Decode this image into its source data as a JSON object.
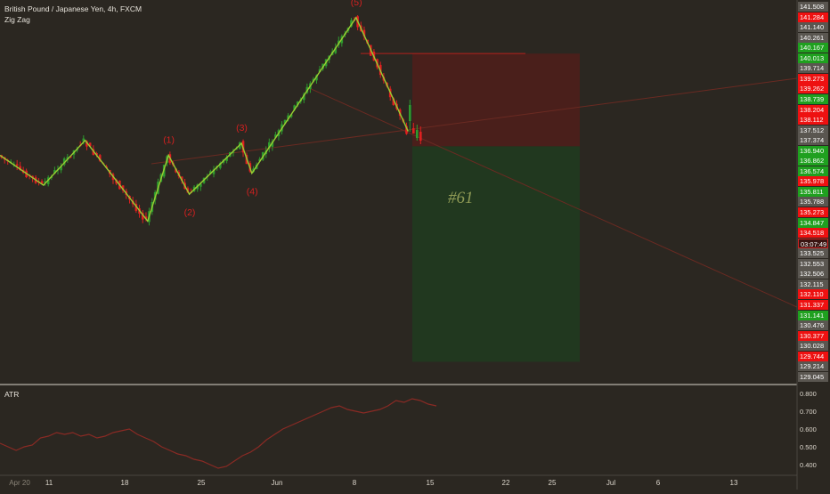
{
  "chart_title": "British Pound / Japanese Yen, 4h, FXCM",
  "indicator_label": "Zig Zag",
  "atr_label": "ATR",
  "position_label": "#61",
  "countdown": "03:07:49",
  "colors": {
    "background": "#2b2721",
    "zigzag": "#9acd32",
    "up_candle": "#2e9b2e",
    "down_candle": "#e02020",
    "stop_zone": "#4a1f1b",
    "target_zone": "#21381f",
    "wave_label": "#d42020",
    "atr_line": "#8a2a24",
    "tag_green": "#1fa01f",
    "tag_red": "#ee1111",
    "tag_gray": "#5a5650"
  },
  "wave_labels": [
    "(1)",
    "(2)",
    "(3)",
    "(4)",
    "(5)"
  ],
  "price_tags": [
    {
      "text": "141.508",
      "kind": "gray"
    },
    {
      "text": "141.284",
      "kind": "red"
    },
    {
      "text": "141.140",
      "kind": "gray"
    },
    {
      "text": "140.261",
      "kind": "gray"
    },
    {
      "text": "140.167",
      "kind": "green"
    },
    {
      "text": "140.013",
      "kind": "green"
    },
    {
      "text": "139.714",
      "kind": "gray"
    },
    {
      "text": "139.273",
      "kind": "red"
    },
    {
      "text": "139.262",
      "kind": "red"
    },
    {
      "text": "138.739",
      "kind": "green"
    },
    {
      "text": "138.204",
      "kind": "red"
    },
    {
      "text": "138.112",
      "kind": "red"
    },
    {
      "text": "137.512",
      "kind": "gray"
    },
    {
      "text": "137.374",
      "kind": "gray"
    },
    {
      "text": "136.940",
      "kind": "green"
    },
    {
      "text": "136.862",
      "kind": "green"
    },
    {
      "text": "136.574",
      "kind": "green"
    },
    {
      "text": "135.978",
      "kind": "red"
    },
    {
      "text": "135.811",
      "kind": "green"
    },
    {
      "text": "135.788",
      "kind": "gray"
    },
    {
      "text": "135.273",
      "kind": "red"
    },
    {
      "text": "134.847",
      "kind": "green"
    },
    {
      "text": "134.518",
      "kind": "red"
    },
    {
      "text": "03:07:49",
      "kind": "dark"
    },
    {
      "text": "133.525",
      "kind": "gray"
    },
    {
      "text": "132.553",
      "kind": "gray"
    },
    {
      "text": "132.506",
      "kind": "gray"
    },
    {
      "text": "132.115",
      "kind": "gray"
    },
    {
      "text": "132.110",
      "kind": "red"
    },
    {
      "text": "131.337",
      "kind": "red"
    },
    {
      "text": "131.141",
      "kind": "green"
    },
    {
      "text": "130.476",
      "kind": "gray"
    },
    {
      "text": "130.377",
      "kind": "red"
    },
    {
      "text": "130.028",
      "kind": "gray"
    },
    {
      "text": "129.744",
      "kind": "red"
    },
    {
      "text": "129.214",
      "kind": "gray"
    },
    {
      "text": "129.045",
      "kind": "gray"
    }
  ],
  "atr_axis": [
    "0.800",
    "0.700",
    "0.600",
    "0.500",
    "0.400"
  ],
  "date_ticks": [
    "Apr 20",
    "11",
    "18",
    "25",
    "Jun",
    "8",
    "15",
    "22",
    "25",
    "Jul",
    "6",
    "13"
  ],
  "chart_data": {
    "type": "candlestick",
    "title": "British Pound / Japanese Yen, 4h, FXCM",
    "zigzag_pivots": [
      {
        "x": "May 8",
        "price": 135.6
      },
      {
        "x": "May 12",
        "price": 137.1
      },
      {
        "x": "May 18",
        "price": 134.4
      },
      {
        "x": "May 20",
        "price": 136.6,
        "label": "(1)"
      },
      {
        "x": "May 22",
        "price": 135.3,
        "label": "(2)"
      },
      {
        "x": "May 27",
        "price": 137.0,
        "label": "(3)"
      },
      {
        "x": "May 28",
        "price": 136.0,
        "label": "(4)"
      },
      {
        "x": "Jun 7",
        "price": 141.2,
        "label": "(5)"
      },
      {
        "x": "Jun 12",
        "price": 137.4
      }
    ],
    "position": {
      "entry": 136.9,
      "stop": 140.0,
      "target": 129.7
    },
    "atr": {
      "label": "ATR",
      "ylim": [
        0.35,
        0.82
      ],
      "values": [
        0.52,
        0.5,
        0.48,
        0.5,
        0.51,
        0.55,
        0.56,
        0.58,
        0.57,
        0.58,
        0.56,
        0.57,
        0.55,
        0.56,
        0.58,
        0.59,
        0.6,
        0.57,
        0.55,
        0.53,
        0.5,
        0.48,
        0.46,
        0.45,
        0.43,
        0.42,
        0.4,
        0.38,
        0.39,
        0.42,
        0.45,
        0.47,
        0.5,
        0.54,
        0.57,
        0.6,
        0.62,
        0.64,
        0.66,
        0.68,
        0.7,
        0.72,
        0.73,
        0.71,
        0.7,
        0.69,
        0.7,
        0.71,
        0.73,
        0.76,
        0.75,
        0.77,
        0.76,
        0.74,
        0.73
      ]
    }
  }
}
